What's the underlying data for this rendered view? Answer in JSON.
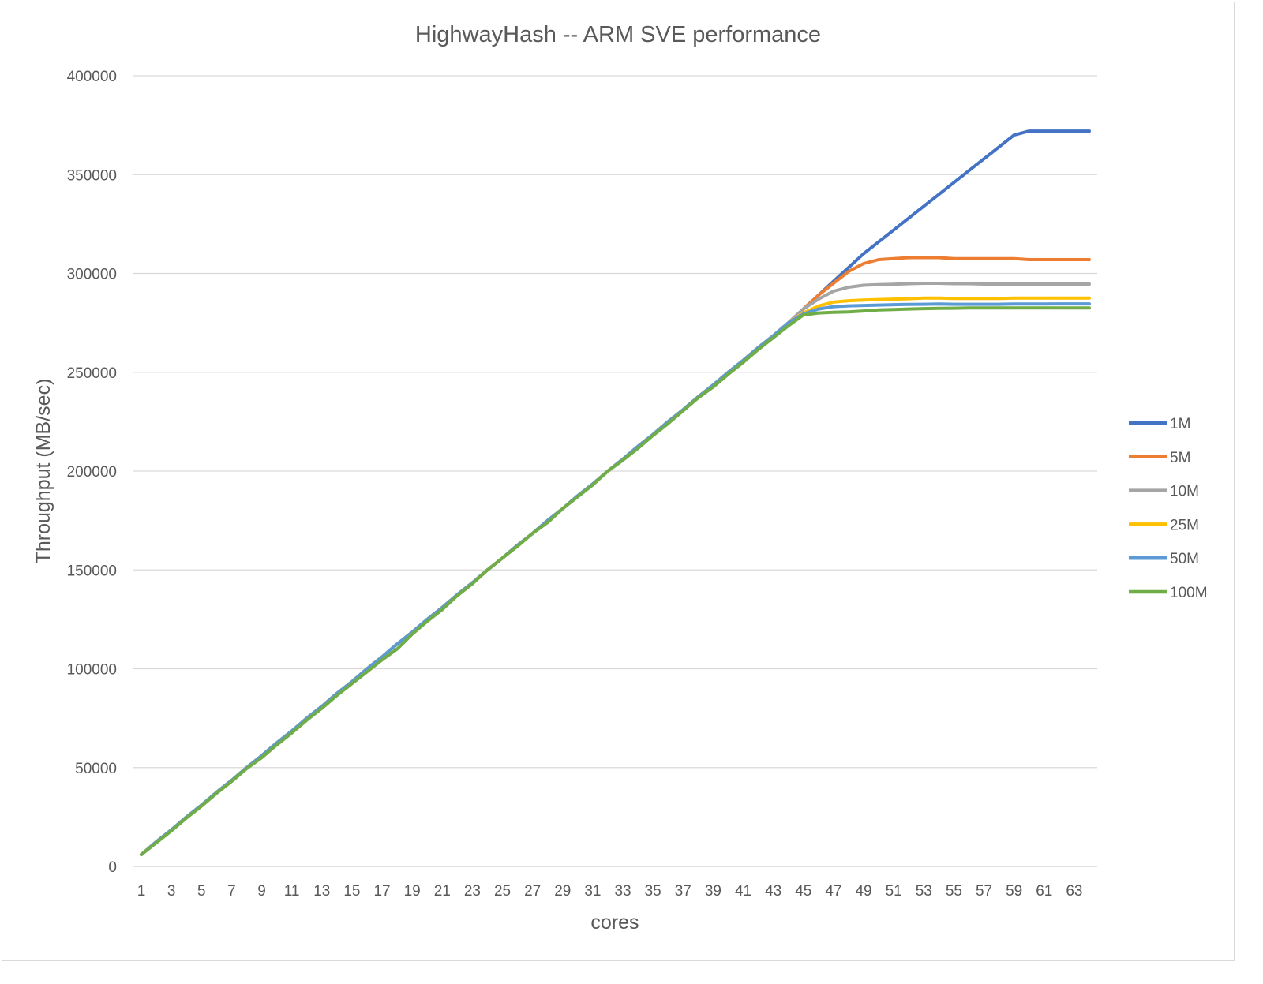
{
  "chart_data": {
    "type": "line",
    "title": "HighwayHash -- ARM SVE performance",
    "xlabel": "cores",
    "ylabel": "Throughput (MB/sec)",
    "ylim": [
      0,
      400000
    ],
    "y_ticks": [
      0,
      50000,
      100000,
      150000,
      200000,
      250000,
      300000,
      350000,
      400000
    ],
    "x_tick_labels": [
      "1",
      "3",
      "5",
      "7",
      "9",
      "11",
      "13",
      "15",
      "17",
      "19",
      "21",
      "23",
      "25",
      "27",
      "29",
      "31",
      "33",
      "35",
      "37",
      "39",
      "41",
      "43",
      "45",
      "47",
      "49",
      "51",
      "53",
      "55",
      "57",
      "59",
      "61",
      "63"
    ],
    "x": [
      1,
      2,
      3,
      4,
      5,
      6,
      7,
      8,
      9,
      10,
      11,
      12,
      13,
      14,
      15,
      16,
      17,
      18,
      19,
      20,
      21,
      22,
      23,
      24,
      25,
      26,
      27,
      28,
      29,
      30,
      31,
      32,
      33,
      34,
      35,
      36,
      37,
      38,
      39,
      40,
      41,
      42,
      43,
      44,
      45,
      46,
      47,
      48,
      49,
      50,
      51,
      52,
      53,
      54,
      55,
      56,
      57,
      58,
      59,
      60,
      61,
      62,
      63,
      64
    ],
    "grid": true,
    "legend_position": "right",
    "series": [
      {
        "name": "1M",
        "color": "#4472c4",
        "values": [
          6000,
          12500,
          18500,
          25000,
          31000,
          37500,
          43500,
          50000,
          56000,
          62500,
          68500,
          75000,
          81000,
          87500,
          93500,
          100000,
          106000,
          112500,
          118500,
          125000,
          131000,
          137500,
          143500,
          150000,
          156000,
          162500,
          168500,
          175000,
          181000,
          187500,
          193500,
          200000,
          206000,
          212500,
          218500,
          225000,
          231000,
          237500,
          243500,
          250000,
          256000,
          262500,
          268500,
          275000,
          282000,
          289000,
          296000,
          303000,
          310000,
          316000,
          322000,
          328000,
          334000,
          340000,
          346000,
          352000,
          358000,
          364000,
          370000,
          372000,
          372000,
          372000,
          372000,
          372000
        ]
      },
      {
        "name": "5M",
        "color": "#ed7d31",
        "values": [
          6000,
          12500,
          18500,
          25000,
          31000,
          37500,
          43500,
          50000,
          56000,
          62500,
          68500,
          75000,
          81000,
          87500,
          93500,
          100000,
          106000,
          112500,
          118500,
          125000,
          131000,
          137500,
          143500,
          150000,
          156000,
          162500,
          168500,
          175000,
          181000,
          187500,
          193500,
          200000,
          206000,
          212500,
          218500,
          225000,
          231000,
          237500,
          243500,
          250000,
          256000,
          262500,
          268500,
          275000,
          282000,
          289000,
          295000,
          301000,
          305000,
          307000,
          307500,
          308000,
          308000,
          308000,
          307500,
          307500,
          307500,
          307500,
          307500,
          307000,
          307000,
          307000,
          307000,
          307000
        ]
      },
      {
        "name": "10M",
        "color": "#a5a5a5",
        "values": [
          6000,
          12500,
          18500,
          25000,
          31000,
          37500,
          43500,
          50000,
          56000,
          62500,
          68500,
          75000,
          81000,
          87500,
          93500,
          100000,
          106000,
          112500,
          118500,
          125000,
          131000,
          137500,
          143500,
          150000,
          156000,
          162500,
          168500,
          175000,
          181000,
          187500,
          193500,
          200000,
          206000,
          212500,
          218500,
          225000,
          231000,
          237500,
          243500,
          250000,
          256000,
          262500,
          268500,
          275000,
          282000,
          287000,
          291000,
          293000,
          294000,
          294300,
          294500,
          294800,
          295000,
          295000,
          294800,
          294800,
          294600,
          294600,
          294600,
          294600,
          294600,
          294600,
          294600,
          294600
        ]
      },
      {
        "name": "25M",
        "color": "#ffc000",
        "values": [
          6000,
          12500,
          18500,
          25000,
          31000,
          37500,
          43500,
          50000,
          56000,
          62500,
          68500,
          75000,
          81000,
          87500,
          93500,
          100000,
          106000,
          112500,
          118500,
          125000,
          131000,
          137500,
          143500,
          150000,
          156000,
          162500,
          168500,
          175000,
          181000,
          187500,
          193500,
          200000,
          206000,
          212500,
          218500,
          225000,
          231000,
          237500,
          243500,
          250000,
          256000,
          262500,
          268500,
          275000,
          280000,
          283500,
          285500,
          286200,
          286500,
          286800,
          287000,
          287200,
          287500,
          287500,
          287300,
          287300,
          287300,
          287300,
          287500,
          287500,
          287500,
          287500,
          287500,
          287500
        ]
      },
      {
        "name": "50M",
        "color": "#5b9bd5",
        "values": [
          6000,
          12500,
          18500,
          25000,
          31000,
          37500,
          43500,
          50000,
          56000,
          62500,
          68500,
          75000,
          81000,
          87500,
          93500,
          100000,
          106000,
          112500,
          118500,
          125000,
          131000,
          137500,
          143500,
          150000,
          156000,
          162500,
          168500,
          175000,
          181000,
          187500,
          193500,
          200000,
          206000,
          212500,
          218500,
          225000,
          231000,
          237500,
          243500,
          250000,
          256000,
          262500,
          268500,
          275000,
          279500,
          282000,
          283200,
          283600,
          283800,
          284000,
          284200,
          284300,
          284400,
          284500,
          284400,
          284400,
          284400,
          284400,
          284500,
          284500,
          284500,
          284600,
          284600,
          284600
        ]
      },
      {
        "name": "100M",
        "color": "#70ad47",
        "values": [
          6000,
          12000,
          18000,
          24500,
          30500,
          37000,
          43000,
          49500,
          55000,
          61500,
          67500,
          74000,
          80000,
          86500,
          92500,
          98500,
          104500,
          110000,
          117500,
          124000,
          130000,
          137000,
          143000,
          150000,
          156000,
          162000,
          168500,
          174000,
          181000,
          187000,
          193000,
          200000,
          205500,
          211500,
          218000,
          224000,
          230500,
          237000,
          242500,
          249000,
          255000,
          261500,
          267500,
          273500,
          279000,
          280000,
          280300,
          280500,
          281000,
          281500,
          281700,
          282000,
          282200,
          282300,
          282400,
          282500,
          282500,
          282500,
          282500,
          282500,
          282500,
          282500,
          282500,
          282500
        ]
      }
    ]
  }
}
